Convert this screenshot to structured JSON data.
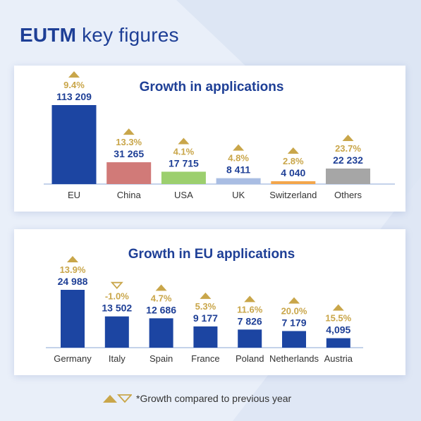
{
  "page_title": {
    "bold": "EUTM",
    "rest": " key figures"
  },
  "footnote": "*Growth compared to previous year",
  "colors": {
    "title": "#1e3f96",
    "growth": "#c9a64a",
    "axis": "#8aa4d6",
    "text": "#333333"
  },
  "chart_data": [
    {
      "type": "bar",
      "title": "Growth in applications",
      "categories": [
        "EU",
        "China",
        "USA",
        "UK",
        "Switzerland",
        "Others"
      ],
      "values": [
        113209,
        31265,
        17715,
        8411,
        4040,
        22232
      ],
      "value_labels": [
        "113 209",
        "31 265",
        "17 715",
        "8 411",
        "4 040",
        "22 232"
      ],
      "growth_labels": [
        "9.4%",
        "13.3%",
        "4.1%",
        "4.8%",
        "2.8%",
        "23.7%"
      ],
      "growth_direction": [
        "up",
        "up",
        "up",
        "up",
        "up",
        "up"
      ],
      "bar_colors": [
        "#1c45a2",
        "#d17a78",
        "#9ccf6e",
        "#a9bde3",
        "#f3a64b",
        "#a6a6a6"
      ],
      "xlabel": "",
      "ylabel": "",
      "ylim": [
        0,
        113209
      ],
      "grid": false
    },
    {
      "type": "bar",
      "title": "Growth in EU applications",
      "categories": [
        "Germany",
        "Italy",
        "Spain",
        "France",
        "Poland",
        "Netherlands",
        "Austria"
      ],
      "values": [
        24988,
        13502,
        12686,
        9177,
        7826,
        7179,
        4095
      ],
      "value_labels": [
        "24 988",
        "13 502",
        "12 686",
        "9 177",
        "7 826",
        "7 179",
        "4,095"
      ],
      "growth_labels": [
        "13.9%",
        "-1.0%",
        "4.7%",
        "5.3%",
        "11.6%",
        "20.0%",
        "15.5%"
      ],
      "growth_direction": [
        "up",
        "down",
        "up",
        "up",
        "up",
        "up",
        "up"
      ],
      "bar_colors": [
        "#1c45a2",
        "#1c45a2",
        "#1c45a2",
        "#1c45a2",
        "#1c45a2",
        "#1c45a2",
        "#1c45a2"
      ],
      "xlabel": "",
      "ylabel": "",
      "ylim": [
        0,
        24988
      ],
      "grid": false
    }
  ]
}
